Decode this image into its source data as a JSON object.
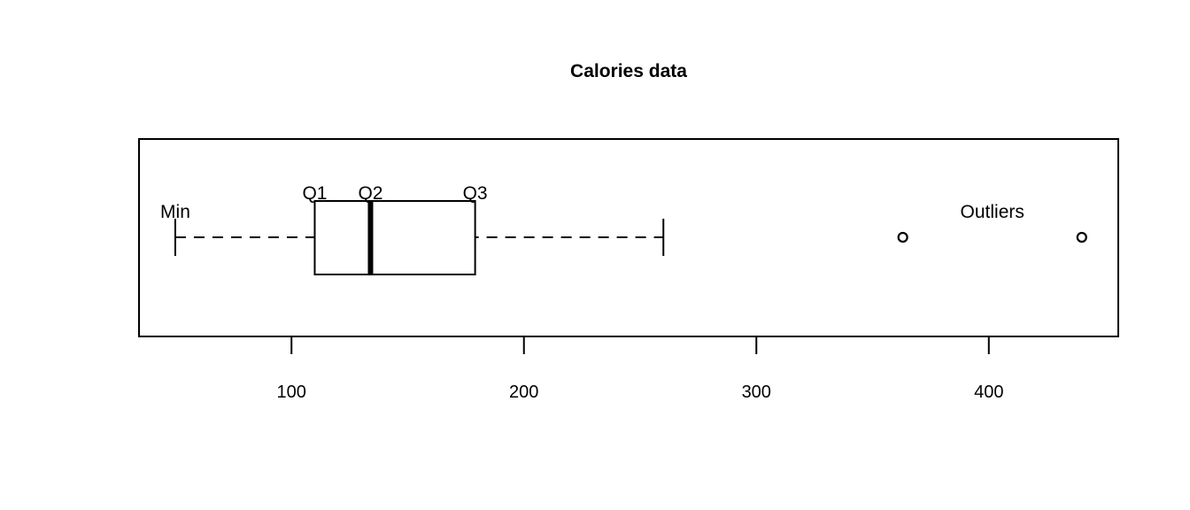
{
  "chart_data": {
    "type": "boxplot",
    "orientation": "horizontal",
    "title": "Calories data",
    "xlabel": "",
    "ylabel": "",
    "xlim": [
      34.4,
      455.7
    ],
    "x_ticks": [
      100,
      200,
      300,
      400
    ],
    "x_tick_labels": [
      "100",
      "200",
      "300",
      "400"
    ],
    "box": {
      "min": 50,
      "q1": 110,
      "median": 134,
      "q3": 179,
      "whisker_high": 260,
      "outliers": [
        363,
        440
      ]
    },
    "annotations": [
      {
        "text": "Min",
        "anchor": "min"
      },
      {
        "text": "Q1",
        "anchor": "q1"
      },
      {
        "text": "Q2",
        "anchor": "median"
      },
      {
        "text": "Q3",
        "anchor": "q3"
      },
      {
        "text": "Outliers",
        "anchor": "outliers"
      }
    ],
    "grid": false,
    "legend": "none"
  }
}
